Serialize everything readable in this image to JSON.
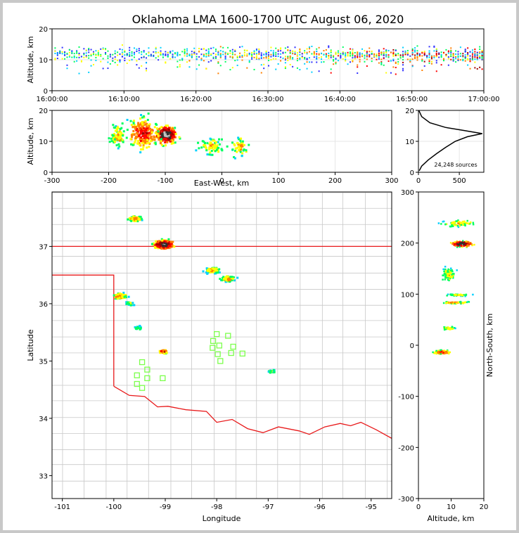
{
  "chart_data": {
    "type": "heatmap",
    "title": "Oklahoma LMA 1600-1700 UTC August 06, 2020",
    "panels": [
      {
        "name": "time-altitude",
        "ylabel": "Altitude, km",
        "xlim": [
          "16:00:00",
          "17:00:00"
        ],
        "ylim": [
          0,
          20
        ],
        "x_ticks": [
          "16:00:00",
          "16:10:00",
          "16:20:00",
          "16:30:00",
          "16:40:00",
          "16:50:00",
          "17:00:00"
        ],
        "y_ticks": [
          "0",
          "10",
          "20"
        ]
      },
      {
        "name": "east-west-altitude",
        "xlabel": "East-West, km",
        "ylabel": "Altitude, km",
        "xlim": [
          -300,
          300
        ],
        "ylim": [
          0,
          20
        ],
        "x_ticks": [
          "-300",
          "-200",
          "-100",
          "0",
          "100",
          "200",
          "300"
        ],
        "y_ticks": [
          "0",
          "10",
          "20"
        ]
      },
      {
        "name": "altitude-histogram",
        "type": "line",
        "xlim": [
          0,
          800
        ],
        "ylim": [
          0,
          20
        ],
        "x_ticks": [
          "0",
          "500"
        ],
        "y_ticks": [
          "0",
          "10",
          "20"
        ],
        "annotation": "24,248 sources",
        "profile": [
          {
            "alt": 0.5,
            "count": 10
          },
          {
            "alt": 2,
            "count": 40
          },
          {
            "alt": 4,
            "count": 120
          },
          {
            "alt": 6,
            "count": 220
          },
          {
            "alt": 8,
            "count": 330
          },
          {
            "alt": 10,
            "count": 450
          },
          {
            "alt": 11.5,
            "count": 600
          },
          {
            "alt": 12.5,
            "count": 780
          },
          {
            "alt": 13.5,
            "count": 560
          },
          {
            "alt": 14.5,
            "count": 330
          },
          {
            "alt": 16,
            "count": 140
          },
          {
            "alt": 18,
            "count": 40
          },
          {
            "alt": 20,
            "count": 5
          }
        ]
      },
      {
        "name": "plan-view",
        "xlabel": "Longitude",
        "ylabel": "Latitude",
        "xlim": [
          -101.2,
          -94.6
        ],
        "ylim": [
          32.6,
          37.95
        ],
        "x_ticks": [
          "-101",
          "-100",
          "-99",
          "-98",
          "-97",
          "-96",
          "-95"
        ],
        "y_ticks": [
          "33",
          "34",
          "35",
          "36",
          "37"
        ],
        "source_clusters": [
          {
            "lon": -99.05,
            "lat": 37.05,
            "intensity": "max"
          },
          {
            "lon": -99.6,
            "lat": 37.5,
            "intensity": "medium"
          },
          {
            "lon": -98.1,
            "lat": 36.6,
            "intensity": "medium"
          },
          {
            "lon": -97.8,
            "lat": 36.45,
            "intensity": "medium"
          },
          {
            "lon": -99.9,
            "lat": 36.15,
            "intensity": "medium"
          },
          {
            "lon": -99.7,
            "lat": 36.02,
            "intensity": "low"
          },
          {
            "lon": -99.55,
            "lat": 35.6,
            "intensity": "low"
          },
          {
            "lon": -99.05,
            "lat": 35.18,
            "intensity": "high"
          },
          {
            "lon": -96.95,
            "lat": 34.84,
            "intensity": "low"
          }
        ],
        "stations": [
          {
            "lon": -98.0,
            "lat": 35.47
          },
          {
            "lon": -97.78,
            "lat": 35.44
          },
          {
            "lon": -98.07,
            "lat": 35.35
          },
          {
            "lon": -97.95,
            "lat": 35.27
          },
          {
            "lon": -98.08,
            "lat": 35.23
          },
          {
            "lon": -97.68,
            "lat": 35.25
          },
          {
            "lon": -97.98,
            "lat": 35.12
          },
          {
            "lon": -97.72,
            "lat": 35.14
          },
          {
            "lon": -97.5,
            "lat": 35.13
          },
          {
            "lon": -97.93,
            "lat": 35.0
          },
          {
            "lon": -99.45,
            "lat": 34.98
          },
          {
            "lon": -99.35,
            "lat": 34.85
          },
          {
            "lon": -99.55,
            "lat": 34.75
          },
          {
            "lon": -99.35,
            "lat": 34.7
          },
          {
            "lon": -99.05,
            "lat": 34.7
          },
          {
            "lon": -99.55,
            "lat": 34.6
          },
          {
            "lon": -99.45,
            "lat": 34.53
          }
        ]
      },
      {
        "name": "altitude-north-south",
        "xlabel": "Altitude, km",
        "ylabel": "North-South, km",
        "xlim": [
          0,
          20
        ],
        "ylim": [
          -300,
          300
        ],
        "x_ticks": [
          "0",
          "10",
          "20"
        ],
        "y_ticks": [
          "-300",
          "-200",
          "-100",
          "0",
          "100",
          "200",
          "300"
        ]
      }
    ]
  },
  "colors": {
    "state_border": "#e8191a",
    "county_lines": "#c8c8c8",
    "station_marker": "#7cff4c",
    "density_scale": [
      "#3030ff",
      "#00d0ff",
      "#00ff60",
      "#ffff00",
      "#ff8000",
      "#ff0000",
      "#a00000",
      "#303030",
      "#c0c0c0"
    ]
  }
}
